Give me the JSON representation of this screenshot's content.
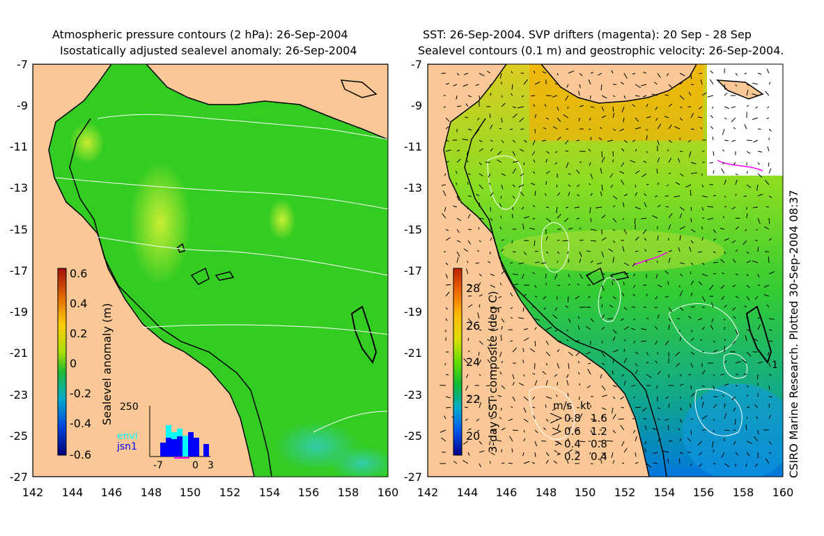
{
  "left_panel": {
    "title_line1": "Atmospheric pressure contours (2 hPa): 26-Sep-2004",
    "title_line2": "Isostatically adjusted sealevel anomaly: 26-Sep-2004",
    "x_ticks": [
      "142",
      "144",
      "146",
      "148",
      "150",
      "152",
      "154",
      "156",
      "158",
      "160"
    ],
    "y_ticks": [
      "-7",
      "-9",
      "-11",
      "-13",
      "-15",
      "-17",
      "-19",
      "-21",
      "-23",
      "-25",
      "-27"
    ],
    "colorbar": {
      "label": "Sealevel anomaly (m)",
      "ticks": [
        "0.6",
        "0.4",
        "0.2",
        "0",
        "-0.2",
        "-0.4",
        "-0.6"
      ]
    },
    "inset": {
      "y_top_label": "250",
      "x_labels": [
        "-7",
        "0",
        "3"
      ],
      "legend_envi": "envi",
      "legend_jsn1": "jsn1",
      "color_envi": "#00ffff",
      "color_jsn1": "#0000ff"
    }
  },
  "right_panel": {
    "title_line1": "SST: 26-Sep-2004. SVP drifters (magenta): 20 Sep - 28 Sep",
    "title_line2": "Sealevel contours (0.1 m) and geostrophic velocity: 26-Sep-2004.",
    "x_ticks": [
      "142",
      "144",
      "146",
      "148",
      "150",
      "152",
      "154",
      "156",
      "158",
      "160"
    ],
    "y_ticks": [
      "-7",
      "-9",
      "-11",
      "-13",
      "-15",
      "-17",
      "-19",
      "-21",
      "-23",
      "-25",
      "-27"
    ],
    "colorbar": {
      "label": "3-day SST composite (deg C)",
      "ticks": [
        "28",
        "26",
        "24",
        "22",
        "20"
      ]
    },
    "velocity_legend": {
      "header_ms": "m/s",
      "header_kt": "kt",
      "rows": [
        {
          "ms": "0.8",
          "kt": "1.6"
        },
        {
          "ms": "0.6",
          "kt": "1.2"
        },
        {
          "ms": "0.4",
          "kt": "0.8"
        },
        {
          "ms": "0.2",
          "kt": "0.4"
        }
      ]
    },
    "contour_label": "1"
  },
  "credit": "CSIRO Marine Research. Plotted 30-Sep-2004 08:37",
  "colors": {
    "land": "#f9c896",
    "ocean_left": "#33cc22",
    "ocean_right": "#33cc33",
    "coastline": "#000000",
    "contour": "#ffffff",
    "drifter": "#ff00ff"
  }
}
